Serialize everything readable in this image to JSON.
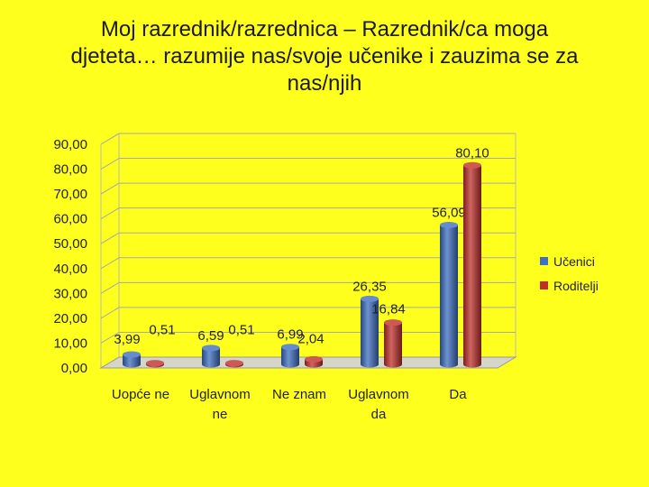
{
  "slide": {
    "title_lines": [
      "Moj razrednik/razrednica – Razrednik/ca moga",
      "djeteta… razumije nas/svoje učenike i zauzima se za",
      "nas/njih"
    ]
  },
  "chart_data": {
    "type": "bar",
    "title": "",
    "xlabel": "",
    "ylabel": "",
    "ylim": [
      0,
      90
    ],
    "ytick_labels": [
      "0,00",
      "10,00",
      "20,00",
      "30,00",
      "40,00",
      "50,00",
      "60,00",
      "70,00",
      "80,00",
      "90,00"
    ],
    "categories": [
      [
        "Uopće ne"
      ],
      [
        "Uglavnom",
        "ne"
      ],
      [
        "Ne znam"
      ],
      [
        "Uglavnom",
        "da"
      ],
      [
        "Da"
      ]
    ],
    "series": [
      {
        "name": "Učenici",
        "color": "#3D6FC2",
        "values": [
          3.99,
          6.59,
          6.99,
          26.35,
          56.09
        ],
        "labels": [
          "3,99",
          "6,59",
          "6,99",
          "26,35",
          "56,09"
        ]
      },
      {
        "name": "Roditelji",
        "color": "#C0302B",
        "values": [
          0.51,
          0.51,
          2.04,
          16.84,
          80.1
        ],
        "labels": [
          "0,51",
          "0,51",
          "2,04",
          "16,84",
          "80,10"
        ]
      }
    ],
    "legend_position": "right",
    "grid": true,
    "style": "3d-cylinder"
  }
}
